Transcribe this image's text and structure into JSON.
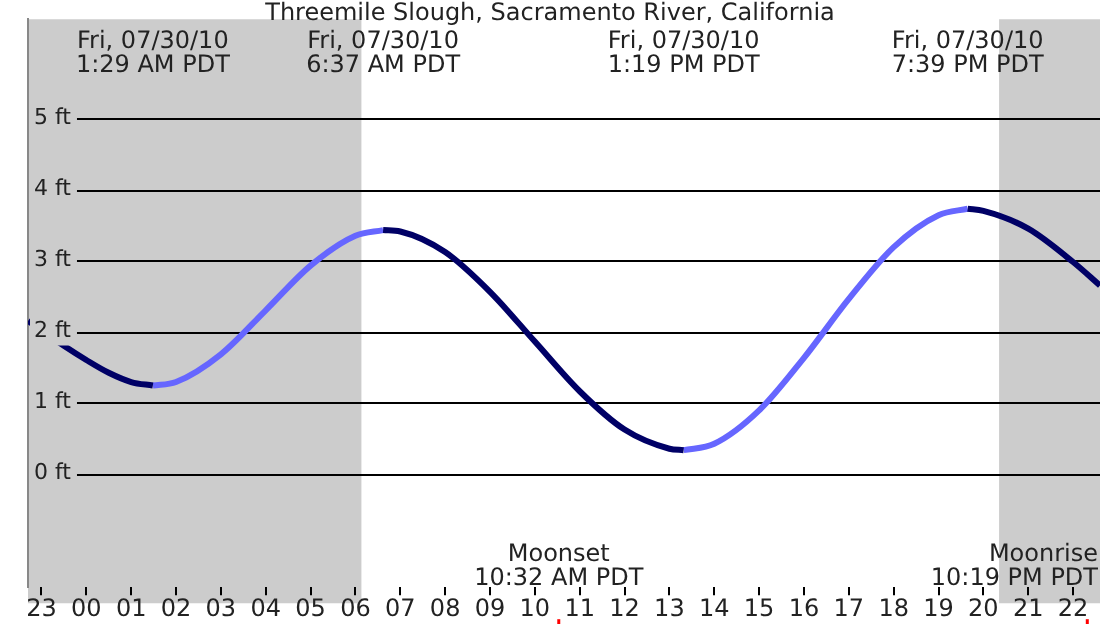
{
  "chart_data": {
    "type": "line",
    "title": "Threemile Slough, Sacramento River, California",
    "marker": "none",
    "grid": "y",
    "xlim": [
      "--07-29T22:42",
      "--07-30T22:36"
    ],
    "xticks": [
      {
        "value": "--07-29T23:00",
        "label": "23"
      },
      {
        "value": "--07-30T00:00",
        "label": "00"
      },
      {
        "value": "--07-30T01:00",
        "label": "01"
      },
      {
        "value": "--07-30T02:00",
        "label": "02"
      },
      {
        "value": "--07-30T03:00",
        "label": "03"
      },
      {
        "value": "--07-30T04:00",
        "label": "04"
      },
      {
        "value": "--07-30T05:00",
        "label": "05"
      },
      {
        "value": "--07-30T06:00",
        "label": "06"
      },
      {
        "value": "--07-30T07:00",
        "label": "07"
      },
      {
        "value": "--07-30T08:00",
        "label": "08"
      },
      {
        "value": "--07-30T09:00",
        "label": "09"
      },
      {
        "value": "--07-30T10:00",
        "label": "10"
      },
      {
        "value": "--07-30T11:00",
        "label": "11"
      },
      {
        "value": "--07-30T12:00",
        "label": "12"
      },
      {
        "value": "--07-30T13:00",
        "label": "13"
      },
      {
        "value": "--07-30T14:00",
        "label": "14"
      },
      {
        "value": "--07-30T15:00",
        "label": "15"
      },
      {
        "value": "--07-30T16:00",
        "label": "16"
      },
      {
        "value": "--07-30T17:00",
        "label": "17"
      },
      {
        "value": "--07-30T18:00",
        "label": "18"
      },
      {
        "value": "--07-30T19:00",
        "label": "19"
      },
      {
        "value": "--07-30T20:00",
        "label": "20"
      },
      {
        "value": "--07-30T21:00",
        "label": "21"
      },
      {
        "value": "--07-30T22:00",
        "label": "22"
      }
    ],
    "ylim": [
      -1.6,
      6.4
    ],
    "yticks": [
      {
        "value": 0,
        "label": "0 ft"
      },
      {
        "value": 1,
        "label": "1 ft"
      },
      {
        "value": 2,
        "label": "2 ft"
      },
      {
        "value": 3,
        "label": "3 ft"
      },
      {
        "value": 4,
        "label": "4 ft"
      },
      {
        "value": 5,
        "label": "5 ft"
      }
    ],
    "series": [
      {
        "color": "#000066",
        "x": [
          "--07-29T22:42",
          "--07-29T23:30",
          "--07-30T00:00",
          "--07-30T00:30",
          "--07-30T01:00",
          "--07-30T01:29",
          "--07-30T04:00",
          "--07-30T06:37",
          "--07-30T07:00",
          "--07-30T08:00",
          "--07-30T09:00",
          "--07-30T10:00",
          "--07-30T11:00",
          "--07-30T12:00",
          "--07-30T13:00",
          "--07-30T13:19",
          "--07-30T16:00",
          "--07-30T19:39",
          "--07-30T20:00",
          "--07-30T21:00",
          "--07-30T22:00",
          "--07-30T22:36"
        ],
        "values": [
          2.15,
          1.8,
          1.6,
          1.42,
          1.29,
          1.24,
          null,
          3.43,
          3.41,
          3.12,
          2.56,
          1.86,
          1.16,
          0.62,
          0.35,
          0.33,
          null,
          3.73,
          3.7,
          3.45,
          2.98,
          2.65
        ]
      },
      {
        "color": "#6666ff",
        "x": [
          "--07-30T01:29",
          "--07-30T02:00",
          "--07-30T03:00",
          "--07-30T04:00",
          "--07-30T05:00",
          "--07-30T06:00",
          "--07-30T06:37",
          "--07-30T10:00",
          "--07-30T13:19",
          "--07-30T14:00",
          "--07-30T15:00",
          "--07-30T16:00",
          "--07-30T17:00",
          "--07-30T18:00",
          "--07-30T19:00",
          "--07-30T19:39"
        ],
        "values": [
          1.24,
          1.29,
          1.68,
          2.3,
          2.93,
          3.35,
          3.43,
          null,
          0.33,
          0.42,
          0.89,
          1.63,
          2.46,
          3.19,
          3.64,
          3.73
        ]
      }
    ],
    "bands": [
      {
        "axis": "x",
        "from": "--07-29T22:42",
        "to": "--07-30T06:08",
        "color": "#cccccc"
      },
      {
        "axis": "x",
        "from": "--07-30T20:21",
        "to": "--07-30T22:36",
        "color": "#cccccc"
      }
    ],
    "ref_lines": [
      {
        "axis": "x",
        "value": "--07-30T10:32",
        "label": "Moonset\n10:32 AM PDT",
        "color": "#ff0000"
      },
      {
        "axis": "x",
        "value": "--07-30T22:19",
        "label": "Moonrise\n10:19 PM PDT",
        "color": "#ff0000"
      }
    ],
    "annotations": [
      "Fri, 07/30/10\n1:29 AM PDT",
      "Fri, 07/30/10\n6:37 AM PDT",
      "Fri, 07/30/10\n1:19 PM PDT",
      "Fri, 07/30/10\n7:39 PM PDT"
    ]
  }
}
